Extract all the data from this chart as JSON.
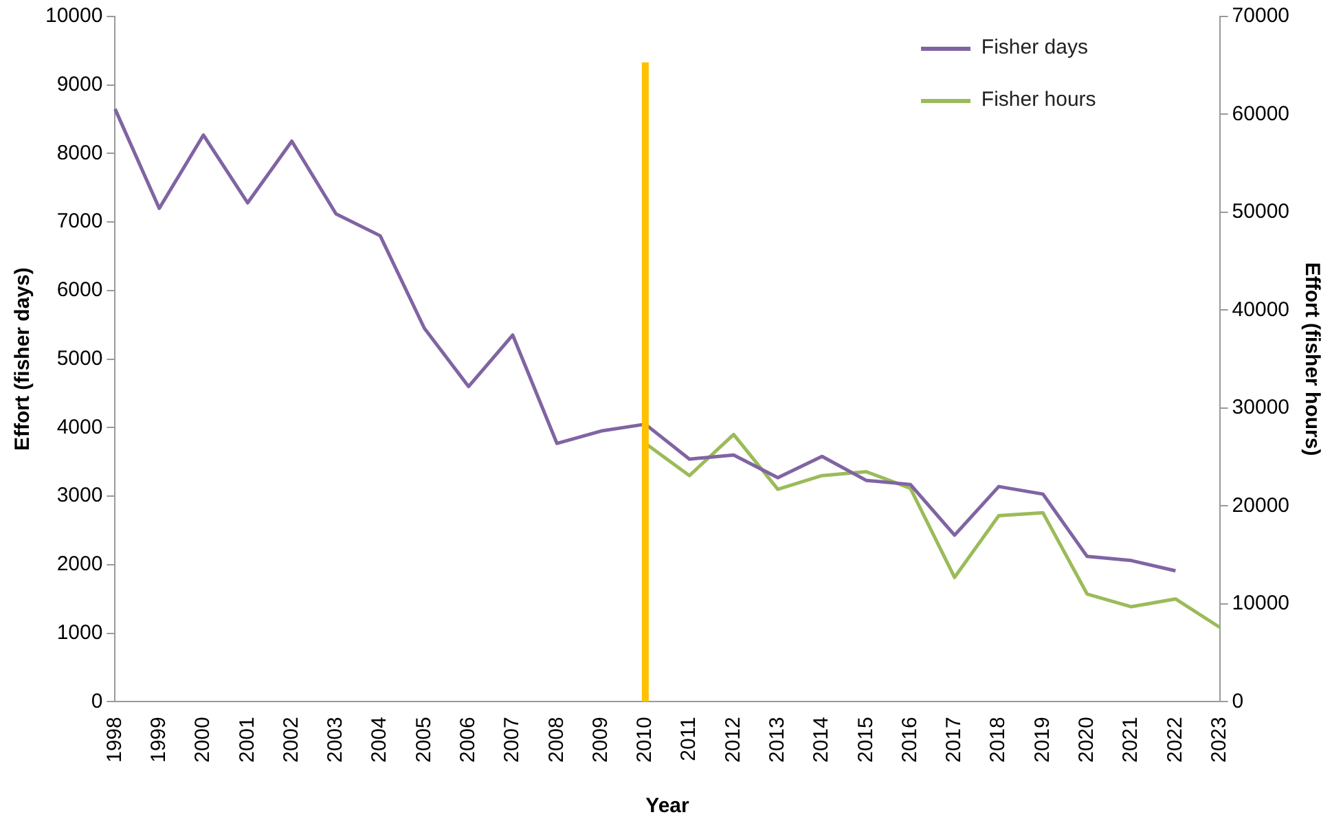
{
  "chart_data": {
    "type": "line",
    "xlabel": "Year",
    "ylabel": "Effort (fisher days)",
    "y2label": "Effort (fisher hours)",
    "categories": [
      "1998",
      "1999",
      "2000",
      "2001",
      "2002",
      "2003",
      "2004",
      "2005",
      "2006",
      "2007",
      "2008",
      "2009",
      "2010",
      "2011",
      "2012",
      "2013",
      "2014",
      "2015",
      "2016",
      "2017",
      "2018",
      "2019",
      "2020",
      "2021",
      "2022",
      "2023"
    ],
    "series": [
      {
        "name": "Fisher days",
        "color": "#8064a2",
        "values": [
          8650,
          7200,
          8270,
          7280,
          8180,
          7120,
          6800,
          5450,
          4600,
          5350,
          3770,
          3950,
          4050,
          3540,
          3600,
          3270,
          3580,
          3230,
          3170,
          2430,
          3140,
          3030,
          2120,
          2060,
          1910,
          null
        ]
      },
      {
        "name": "Fisher hours",
        "color": "#9bbb59",
        "axis": "y2",
        "values": [
          null,
          null,
          null,
          null,
          null,
          null,
          null,
          null,
          null,
          null,
          null,
          null,
          26400,
          23100,
          27300,
          21700,
          23100,
          23500,
          21800,
          12700,
          19000,
          19300,
          11000,
          9700,
          10500,
          7600
        ]
      }
    ],
    "ylim": [
      0,
      10000
    ],
    "yticks": [
      0,
      1000,
      2000,
      3000,
      4000,
      5000,
      6000,
      7000,
      8000,
      9000,
      10000
    ],
    "y2lim": [
      0,
      70000
    ],
    "y2ticks": [
      0,
      10000,
      20000,
      30000,
      40000,
      50000,
      60000,
      70000
    ],
    "ref_lines": [
      {
        "axis": "x",
        "value": "2010",
        "color": "#ffc000"
      }
    ],
    "grid": false,
    "legend": "top right",
    "marker": "none",
    "line_style": "solid"
  }
}
